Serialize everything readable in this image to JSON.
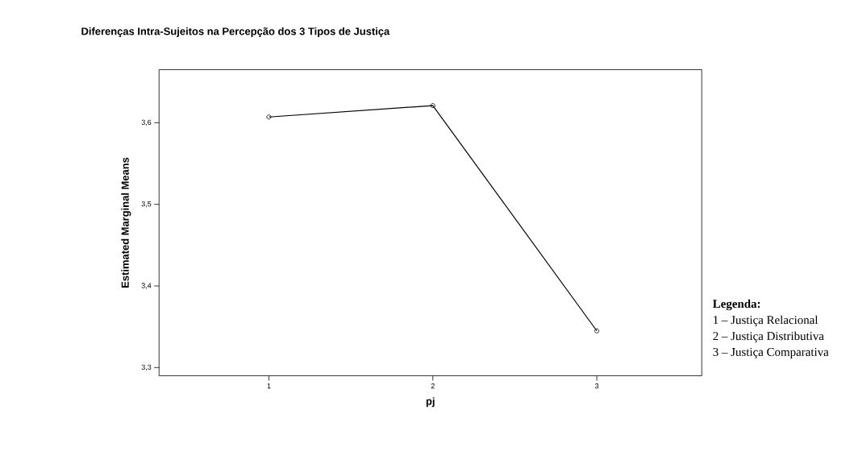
{
  "chart_data": {
    "type": "line",
    "title": "Diferenças Intra-Sujeitos na Percepção dos 3 Tipos de Justiça",
    "xlabel": "pj",
    "ylabel": "Estimated Marginal Means",
    "x": [
      1,
      2,
      3
    ],
    "values": [
      3.607,
      3.621,
      3.345
    ],
    "color": "#000000",
    "marker": "circle",
    "xlim": [
      0.33,
      3.64
    ],
    "xticks": [
      1,
      2,
      3
    ],
    "ylim": [
      3.29,
      3.665
    ],
    "yticks": [
      {
        "value": 3.3,
        "label": "3,3"
      },
      {
        "value": 3.4,
        "label": "3,4"
      },
      {
        "value": 3.5,
        "label": "3,5"
      },
      {
        "value": 3.6,
        "label": "3,6"
      }
    ],
    "annotations": [
      "**Legenda:**",
      "1 – Justiça Relacional",
      "2 – Justiça Distributiva",
      "3 – Justiça Comparativa"
    ]
  }
}
